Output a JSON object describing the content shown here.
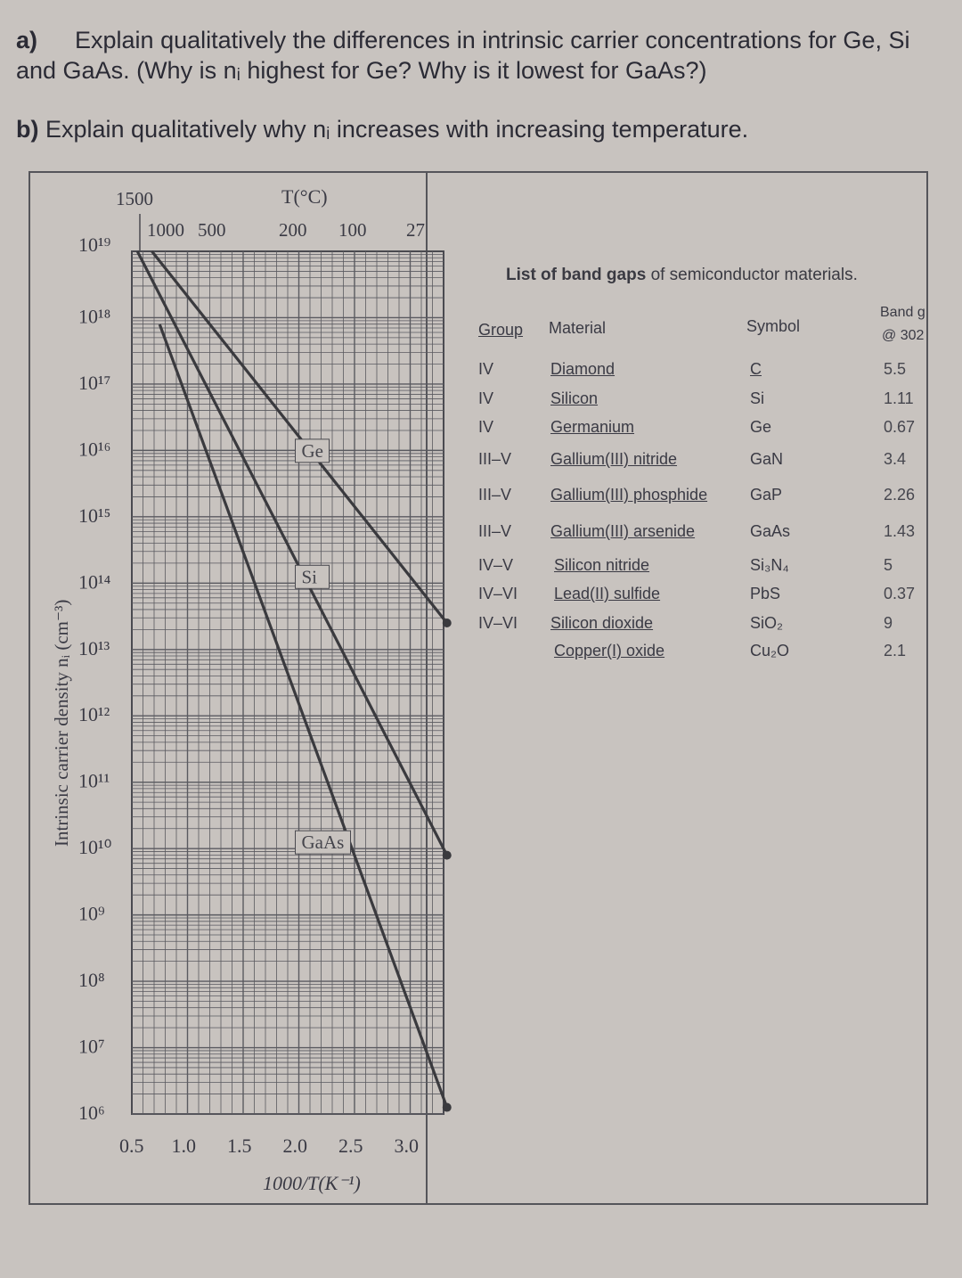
{
  "questions": {
    "a_label": "a)",
    "a_text": "Explain qualitatively the differences in intrinsic carrier concentrations for Ge, Si and GaAs. (Why is nᵢ highest for Ge? Why is it lowest for GaAs?)",
    "b_label": "b)",
    "b_text": "Explain qualitatively why nᵢ increases with increasing temperature."
  },
  "chart_data": {
    "type": "line",
    "ylabel": "Intrinsic carrier density nᵢ (cm⁻³)",
    "xlabel": "1000/T(K⁻¹)",
    "top_axis_label": "T(°C)",
    "top_ticks": [
      "1500",
      "1000",
      "500",
      "200",
      "100",
      "27"
    ],
    "x_ticks": [
      "0.5",
      "1.0",
      "1.5",
      "2.0",
      "2.5",
      "3.0"
    ],
    "y_ticks": [
      "10¹⁹",
      "10¹⁸",
      "10¹⁷",
      "10¹⁶",
      "10¹⁵",
      "10¹⁴",
      "10¹³",
      "10¹²",
      "10¹¹",
      "10¹⁰",
      "10⁹",
      "10⁸",
      "10⁷",
      "10⁶"
    ],
    "x_range": [
      0.5,
      3.3
    ],
    "y_range_log10": [
      6,
      19
    ],
    "y_scale": "log",
    "grid": true,
    "series": [
      {
        "name": "Ge",
        "points": [
          [
            0.68,
            19.0
          ],
          [
            3.33,
            13.4
          ]
        ]
      },
      {
        "name": "Si",
        "points": [
          [
            0.55,
            19.0
          ],
          [
            3.33,
            9.9
          ]
        ]
      },
      {
        "name": "GaAs",
        "points": [
          [
            0.75,
            17.9
          ],
          [
            3.33,
            6.1
          ]
        ]
      }
    ]
  },
  "table": {
    "title_bold": "List of band gaps",
    "title_rest": "of semiconductor materials.",
    "headers": {
      "group": "Group",
      "material": "Material",
      "symbol": "Symbol",
      "gap": "Band g",
      "gap2": "@ 302"
    },
    "rows": [
      {
        "group": "IV",
        "material": "Diamond",
        "symbol": "C",
        "gap": "5.5"
      },
      {
        "group": "IV",
        "material": "Silicon",
        "symbol": "Si",
        "gap": "1.11"
      },
      {
        "group": "IV",
        "material": "Germanium",
        "symbol": "Ge",
        "gap": "0.67"
      },
      {
        "group": "III–V",
        "material": "Gallium(III) nitride",
        "symbol": "GaN",
        "gap": "3.4"
      },
      {
        "group": "III–V",
        "material": "Gallium(III) phosphide",
        "symbol": "GaP",
        "gap": "2.26"
      },
      {
        "group": "III–V",
        "material": "Gallium(III) arsenide",
        "symbol": "GaAs",
        "gap": "1.43"
      },
      {
        "group": "IV–V",
        "material": "Silicon nitride",
        "symbol": "Si₃N₄",
        "gap": "5"
      },
      {
        "group": "IV–VI",
        "material": "Lead(II) sulfide",
        "symbol": "PbS",
        "gap": "0.37"
      },
      {
        "group": "IV–VI",
        "material": "Silicon dioxide",
        "symbol": "SiO₂",
        "gap": "9"
      },
      {
        "group": "",
        "material": "Copper(I) oxide",
        "symbol": "Cu₂O",
        "gap": "2.1"
      }
    ]
  }
}
